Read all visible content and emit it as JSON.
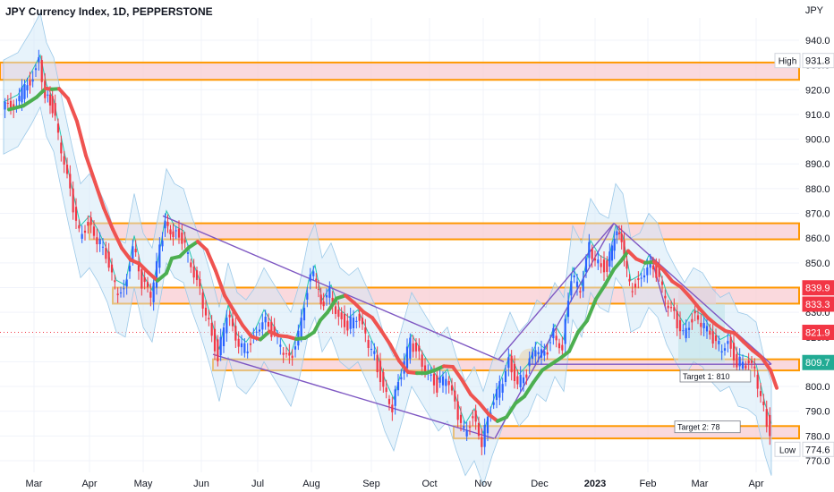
{
  "header": {
    "title": "JPY Currency Index, 1D, PEPPERSTONE",
    "unit": "JPY"
  },
  "chart_data": {
    "type": "candlestick",
    "ylim": [
      770.0,
      945.0
    ],
    "y_ticks": [
      940.0,
      930.0,
      920.0,
      910.0,
      900.0,
      890.0,
      880.0,
      870.0,
      860.0,
      850.0,
      840.0,
      830.0,
      820.0,
      810.0,
      800.0,
      790.0,
      780.0,
      770.0
    ],
    "x_ticks": [
      "Mar",
      "Apr",
      "May",
      "Jun",
      "Jul",
      "Aug",
      "Sep",
      "Oct",
      "Nov",
      "Dec",
      "2023",
      "Feb",
      "Mar",
      "Apr"
    ],
    "price_labels": [
      {
        "label": "High",
        "value": "931.8",
        "y": 931.8,
        "color": "#ffffff",
        "text_color": "#131722"
      },
      {
        "label": "",
        "value": "839.9",
        "y": 839.9,
        "color": "#f23645",
        "text_color": "#ffffff"
      },
      {
        "label": "",
        "value": "833.3",
        "y": 833.3,
        "color": "#f23645",
        "text_color": "#ffffff"
      },
      {
        "label": "",
        "value": "821.9",
        "y": 821.9,
        "color": "#f23645",
        "text_color": "#ffffff"
      },
      {
        "label": "",
        "value": "809.7",
        "y": 809.7,
        "color": "#22ab94",
        "text_color": "#ffffff"
      },
      {
        "label": "Low",
        "value": "774.6",
        "y": 774.6,
        "color": "#ffffff",
        "text_color": "#131722"
      }
    ],
    "annotations": [
      {
        "text": "Target 1: 810",
        "x": 760,
        "y": 804.0
      },
      {
        "text": "Target 2: 78",
        "x": 754,
        "y": 783.5
      }
    ],
    "zones": [
      {
        "y_top": 931.0,
        "y_bottom": 924.0,
        "x0": 0,
        "x1": 893
      },
      {
        "y_top": 866.0,
        "y_bottom": 859.5,
        "x0": 100,
        "x1": 893
      },
      {
        "y_top": 840.0,
        "y_bottom": 833.5,
        "x0": 126,
        "x1": 893
      },
      {
        "y_top": 811.0,
        "y_bottom": 806.5,
        "x0": 238,
        "x1": 893
      },
      {
        "y_top": 784.0,
        "y_bottom": 779.0,
        "x0": 507,
        "x1": 893
      }
    ],
    "colors": {
      "up": "#2962ff",
      "down": "#f23645",
      "zone_fill": "#f8c9cf",
      "zone_line": "#ff9800",
      "trend": "#7e57c2",
      "band": "#cfe7f7",
      "mid": "#26c6b0",
      "ma_down": "#ef5350",
      "ma_up": "#4caf50"
    },
    "series": [
      {
        "name": "",
        "points": [
          [
            4,
            912.0
          ],
          [
            20,
            915.0
          ],
          [
            35,
            924.0
          ],
          [
            45,
            931.0
          ],
          [
            52,
            919.0
          ],
          [
            60,
            913.0
          ],
          [
            70,
            895.0
          ],
          [
            80,
            878.0
          ],
          [
            90,
            862.0
          ],
          [
            100,
            866.0
          ],
          [
            110,
            860.0
          ],
          [
            120,
            852.0
          ],
          [
            130,
            840.0
          ],
          [
            140,
            838.0
          ],
          [
            150,
            858.0
          ],
          [
            160,
            842.0
          ],
          [
            170,
            836.0
          ],
          [
            180,
            855.0
          ],
          [
            186,
            868.0
          ],
          [
            195,
            862.0
          ],
          [
            205,
            860.0
          ],
          [
            215,
            848.0
          ],
          [
            225,
            838.0
          ],
          [
            235,
            826.0
          ],
          [
            245,
            812.0
          ],
          [
            255,
            830.0
          ],
          [
            265,
            818.0
          ],
          [
            275,
            815.0
          ],
          [
            285,
            820.0
          ],
          [
            295,
            828.0
          ],
          [
            305,
            822.0
          ],
          [
            315,
            816.0
          ],
          [
            325,
            810.0
          ],
          [
            335,
            822.0
          ],
          [
            345,
            840.0
          ],
          [
            352,
            846.0
          ],
          [
            360,
            832.0
          ],
          [
            370,
            838.0
          ],
          [
            380,
            828.0
          ],
          [
            390,
            825.0
          ],
          [
            400,
            828.0
          ],
          [
            410,
            820.0
          ],
          [
            420,
            812.0
          ],
          [
            430,
            800.0
          ],
          [
            440,
            792.0
          ],
          [
            450,
            805.0
          ],
          [
            460,
            818.0
          ],
          [
            470,
            812.0
          ],
          [
            480,
            806.0
          ],
          [
            490,
            800.0
          ],
          [
            500,
            804.0
          ],
          [
            510,
            792.0
          ],
          [
            520,
            782.0
          ],
          [
            530,
            788.0
          ],
          [
            540,
            778.0
          ],
          [
            550,
            790.0
          ],
          [
            560,
            800.0
          ],
          [
            570,
            810.0
          ],
          [
            580,
            802.0
          ],
          [
            590,
            806.0
          ],
          [
            600,
            815.0
          ],
          [
            610,
            812.0
          ],
          [
            620,
            822.0
          ],
          [
            630,
            816.0
          ],
          [
            640,
            845.0
          ],
          [
            650,
            838.0
          ],
          [
            660,
            856.0
          ],
          [
            670,
            850.0
          ],
          [
            680,
            848.0
          ],
          [
            688,
            862.0
          ],
          [
            696,
            858.0
          ],
          [
            705,
            840.0
          ],
          [
            715,
            842.0
          ],
          [
            725,
            850.0
          ],
          [
            735,
            846.0
          ],
          [
            745,
            835.0
          ],
          [
            755,
            828.0
          ],
          [
            765,
            822.0
          ],
          [
            775,
            828.0
          ],
          [
            785,
            826.0
          ],
          [
            795,
            820.0
          ],
          [
            805,
            816.0
          ],
          [
            815,
            818.0
          ],
          [
            825,
            810.0
          ],
          [
            835,
            809.0
          ],
          [
            845,
            806.0
          ],
          [
            855,
            790.0
          ],
          [
            862,
            782.0
          ]
        ]
      }
    ]
  }
}
